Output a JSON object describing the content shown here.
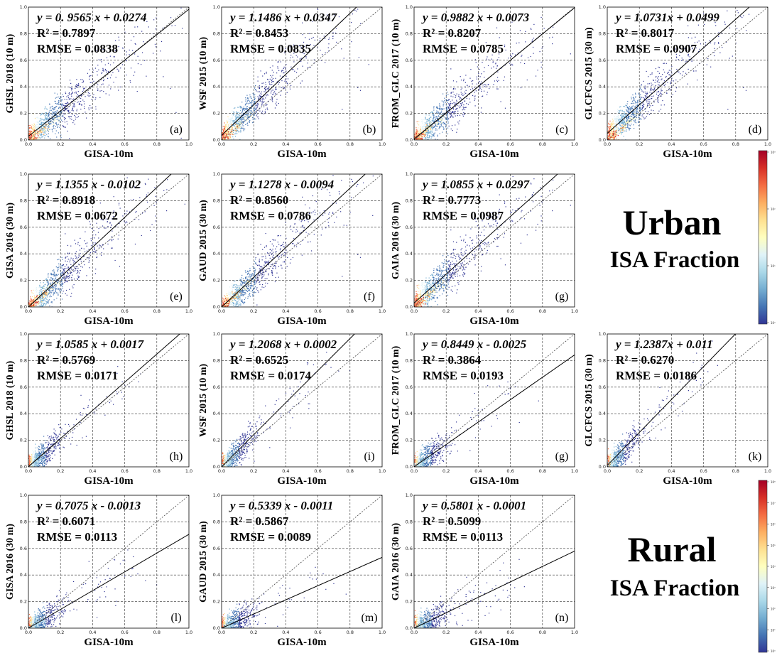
{
  "figure": {
    "urban_label": {
      "line1": "Urban",
      "line2": "ISA Fraction"
    },
    "rural_label": {
      "line1": "Rural",
      "line2": "ISA Fraction"
    },
    "colorbar_urban_ticks": [
      "10³",
      "10²",
      "10¹",
      "10⁰"
    ],
    "colorbar_rural_ticks": [
      "10⁸",
      "10⁷",
      "10⁶",
      "10⁵",
      "10⁴",
      "10³",
      "10²",
      "10¹",
      "10⁰"
    ],
    "colormap": [
      "#313695",
      "#4575b4",
      "#74add1",
      "#abd9e9",
      "#e0f3f8",
      "#ffffbf",
      "#fee090",
      "#fdae61",
      "#f46d43",
      "#d73027",
      "#a50026"
    ]
  },
  "chart_data": [
    {
      "type": "scatter",
      "panel": "(a)",
      "group": "urban",
      "xlabel": "GISA-10m",
      "ylabel": "GHSL 2018 (10 m)",
      "equation": "y = 0. 9565 x + 0.0274",
      "slope": 0.9565,
      "intercept": 0.0274,
      "r2": "R² = 0.7897",
      "rmse": "RMSE = 0.0838",
      "xlim": [
        0,
        1
      ],
      "ylim": [
        0,
        1
      ],
      "ticks": [
        "0.0",
        "0.2",
        "0.4",
        "0.6",
        "0.8",
        "1.0"
      ],
      "grid": true,
      "identity_line": true
    },
    {
      "type": "scatter",
      "panel": "(b)",
      "group": "urban",
      "xlabel": "GISA-10m",
      "ylabel": "WSF 2015 (10 m)",
      "equation": "y = 1.1486 x + 0.0347",
      "slope": 1.1486,
      "intercept": 0.0347,
      "r2": "R² = 0.8453",
      "rmse": "RMSE = 0.0835",
      "xlim": [
        0,
        1
      ],
      "ylim": [
        0,
        1
      ],
      "ticks": [
        "0.0",
        "0.2",
        "0.4",
        "0.6",
        "0.8",
        "1.0"
      ],
      "grid": true,
      "identity_line": true
    },
    {
      "type": "scatter",
      "panel": "(c)",
      "group": "urban",
      "xlabel": "GISA-10m",
      "ylabel": "FROM_GLC 2017 (10 m)",
      "equation": "y = 0.9882 x + 0.0073",
      "slope": 0.9882,
      "intercept": 0.0073,
      "r2": "R² = 0.8207",
      "rmse": "RMSE = 0.0785",
      "xlim": [
        0,
        1
      ],
      "ylim": [
        0,
        1
      ],
      "ticks": [
        "0.0",
        "0.2",
        "0.4",
        "0.6",
        "0.8",
        "1.0"
      ],
      "grid": true,
      "identity_line": true
    },
    {
      "type": "scatter",
      "panel": "(d)",
      "group": "urban",
      "xlabel": "GISA-10m",
      "ylabel": "GLCFCS 2015 (30 m)",
      "equation": "y = 1.0731x + 0.0499",
      "slope": 1.0731,
      "intercept": 0.0499,
      "r2": "R² = 0.8017",
      "rmse": "RMSE = 0.0907",
      "xlim": [
        0,
        1
      ],
      "ylim": [
        0,
        1
      ],
      "ticks": [
        "0.0",
        "0.2",
        "0.4",
        "0.6",
        "0.8",
        "1.0"
      ],
      "grid": true,
      "identity_line": true
    },
    {
      "type": "scatter",
      "panel": "(e)",
      "group": "urban",
      "xlabel": "GISA-10m",
      "ylabel": "GISA 2016 (30 m)",
      "equation": "y = 1.1355 x - 0.0102",
      "slope": 1.1355,
      "intercept": -0.0102,
      "r2": "R² = 0.8918",
      "rmse": "RMSE = 0.0672",
      "xlim": [
        0,
        1
      ],
      "ylim": [
        0,
        1
      ],
      "ticks": [
        "0.0",
        "0.2",
        "0.4",
        "0.6",
        "0.8",
        "1.0"
      ],
      "grid": true,
      "identity_line": true
    },
    {
      "type": "scatter",
      "panel": "(f)",
      "group": "urban",
      "xlabel": "GISA-10m",
      "ylabel": "GAUD 2015 (30 m)",
      "equation": "y = 1.1278 x - 0.0094",
      "slope": 1.1278,
      "intercept": -0.0094,
      "r2": "R² = 0.8560",
      "rmse": "RMSE = 0.0786",
      "xlim": [
        0,
        1
      ],
      "ylim": [
        0,
        1
      ],
      "ticks": [
        "0.0",
        "0.2",
        "0.4",
        "0.6",
        "0.8",
        "1.0"
      ],
      "grid": true,
      "identity_line": true
    },
    {
      "type": "scatter",
      "panel": "(g)",
      "group": "urban",
      "xlabel": "GISA-10m",
      "ylabel": "GAIA 2016 (30 m)",
      "equation": "y = 1.0855 x + 0.0297",
      "slope": 1.0855,
      "intercept": 0.0297,
      "r2": "R² = 0.7773",
      "rmse": "RMSE = 0.0987",
      "xlim": [
        0,
        1
      ],
      "ylim": [
        0,
        1
      ],
      "ticks": [
        "0.0",
        "0.2",
        "0.4",
        "0.6",
        "0.8",
        "1.0"
      ],
      "grid": true,
      "identity_line": true
    },
    {
      "type": "scatter",
      "panel": "(h)",
      "group": "rural",
      "xlabel": "GISA-10m",
      "ylabel": "GHSL 2018 (10 m)",
      "equation": "y = 1.0585 x + 0.0017",
      "slope": 1.0585,
      "intercept": 0.0017,
      "r2": "R² = 0.5769",
      "rmse": "RMSE = 0.0171",
      "xlim": [
        0,
        1
      ],
      "ylim": [
        0,
        1
      ],
      "ticks": [
        "0.0",
        "0.2",
        "0.4",
        "0.6",
        "0.8",
        "1.0"
      ],
      "grid": true,
      "identity_line": true
    },
    {
      "type": "scatter",
      "panel": "(i)",
      "group": "rural",
      "xlabel": "GISA-10m",
      "ylabel": "WSF 2015 (10 m)",
      "equation": "y = 1.2068 x + 0.0002",
      "slope": 1.2068,
      "intercept": 0.0002,
      "r2": "R² = 0.6525",
      "rmse": "RMSE = 0.0174",
      "xlim": [
        0,
        1
      ],
      "ylim": [
        0,
        1
      ],
      "ticks": [
        "0.0",
        "0.2",
        "0.4",
        "0.6",
        "0.8",
        "1.0"
      ],
      "grid": true,
      "identity_line": true
    },
    {
      "type": "scatter",
      "panel": "(g)",
      "group": "rural",
      "xlabel": "GISA-10m",
      "ylabel": "FROM_GLC 2017 (10 m)",
      "equation": "y = 0.8449 x - 0.0025",
      "slope": 0.8449,
      "intercept": -0.0025,
      "r2": "R² = 0.3864",
      "rmse": "RMSE = 0.0193",
      "xlim": [
        0,
        1
      ],
      "ylim": [
        0,
        1
      ],
      "ticks": [
        "0.0",
        "0.2",
        "0.4",
        "0.6",
        "0.8",
        "1.0"
      ],
      "grid": true,
      "identity_line": true
    },
    {
      "type": "scatter",
      "panel": "(k)",
      "group": "rural",
      "xlabel": "GISA-10m",
      "ylabel": "GLCFCS 2015 (30 m)",
      "equation": "y = 1.2387x + 0.011",
      "slope": 1.2387,
      "intercept": 0.011,
      "r2": "R² = 0.6270",
      "rmse": "RMSE = 0.0186",
      "xlim": [
        0,
        1
      ],
      "ylim": [
        0,
        1
      ],
      "ticks": [
        "0.0",
        "0.2",
        "0.4",
        "0.6",
        "0.8",
        "1.0"
      ],
      "grid": true,
      "identity_line": true
    },
    {
      "type": "scatter",
      "panel": "(l)",
      "group": "rural",
      "xlabel": "GISA-10m",
      "ylabel": "GISA 2016 (30 m)",
      "equation": "y = 0.7075 x - 0.0013",
      "slope": 0.7075,
      "intercept": -0.0013,
      "r2": "R² = 0.6071",
      "rmse": "RMSE = 0.0113",
      "xlim": [
        0,
        1
      ],
      "ylim": [
        0,
        1
      ],
      "ticks": [
        "0.0",
        "0.2",
        "0.4",
        "0.6",
        "0.8",
        "1.0"
      ],
      "grid": true,
      "identity_line": true
    },
    {
      "type": "scatter",
      "panel": "(m)",
      "group": "rural",
      "xlabel": "GISA-10m",
      "ylabel": "GAUD 2015 (30 m)",
      "equation": "y = 0.5339 x - 0.0011",
      "slope": 0.5339,
      "intercept": -0.0011,
      "r2": "R² = 0.5867",
      "rmse": "RMSE = 0.0089",
      "xlim": [
        0,
        1
      ],
      "ylim": [
        0,
        1
      ],
      "ticks": [
        "0.0",
        "0.2",
        "0.4",
        "0.6",
        "0.8",
        "1.0"
      ],
      "grid": true,
      "identity_line": true
    },
    {
      "type": "scatter",
      "panel": "(n)",
      "group": "rural",
      "xlabel": "GISA-10m",
      "ylabel": "GAIA 2016 (30 m)",
      "equation": "y = 0.5801 x - 0.0001",
      "slope": 0.5801,
      "intercept": -0.0001,
      "r2": "R² = 0.5099",
      "rmse": "RMSE = 0.0113",
      "xlim": [
        0,
        1
      ],
      "ylim": [
        0,
        1
      ],
      "ticks": [
        "0.0",
        "0.2",
        "0.4",
        "0.6",
        "0.8",
        "1.0"
      ],
      "grid": true,
      "identity_line": true
    }
  ]
}
